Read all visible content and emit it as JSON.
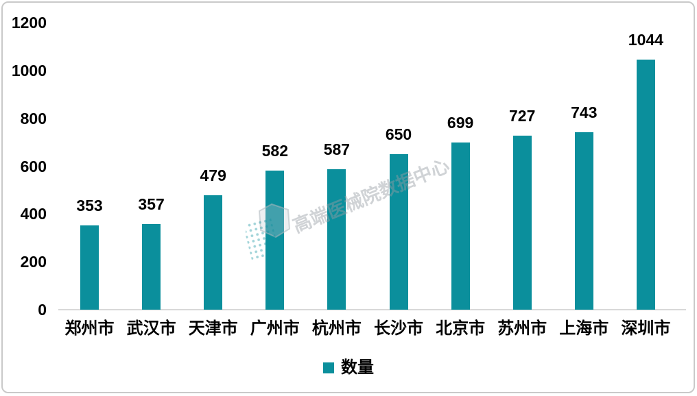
{
  "chart_data": {
    "type": "bar",
    "categories": [
      "郑州市",
      "武汉市",
      "天津市",
      "广州市",
      "杭州市",
      "长沙市",
      "北京市",
      "苏州市",
      "上海市",
      "深圳市"
    ],
    "values": [
      353,
      357,
      479,
      582,
      587,
      650,
      699,
      727,
      743,
      1044
    ],
    "series": [
      {
        "name": "数量",
        "values": [
          353,
          357,
          479,
          582,
          587,
          650,
          699,
          727,
          743,
          1044
        ]
      }
    ],
    "title": "",
    "xlabel": "",
    "ylabel": "",
    "ylim": [
      0,
      1200
    ],
    "yticks": [
      0,
      200,
      400,
      600,
      800,
      1000,
      1200
    ],
    "grid": false,
    "legend_position": "bottom",
    "bar_color": "#0b8f9c",
    "axis_line_color": "#d9d9d9",
    "data_labels": true
  },
  "legend": {
    "label": "数量",
    "swatch_color": "#0b8f9c"
  },
  "watermark": {
    "text": "高端医械院数据中心"
  }
}
